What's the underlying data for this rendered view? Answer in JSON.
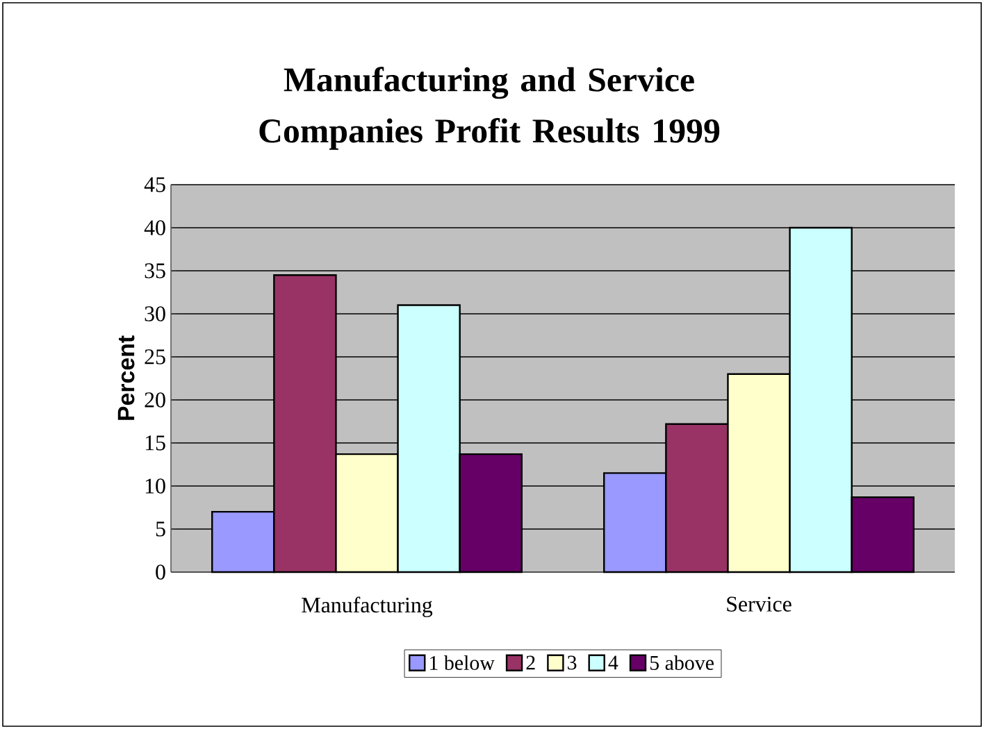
{
  "chart_data": {
    "type": "bar",
    "title": "Manufacturing and Service Companies Profit Results 1999",
    "ylabel": "Percent",
    "categories": [
      "Manufacturing",
      "Service"
    ],
    "series": [
      {
        "name": "1 below",
        "color": "#9999ff",
        "values": [
          7,
          11.5
        ]
      },
      {
        "name": "2",
        "color": "#993366",
        "values": [
          34.5,
          17.2
        ]
      },
      {
        "name": "3",
        "color": "#ffffcc",
        "values": [
          13.7,
          23
        ]
      },
      {
        "name": "4",
        "color": "#ccffff",
        "values": [
          31,
          40
        ]
      },
      {
        "name": "5 above",
        "color": "#660066",
        "values": [
          13.7,
          8.7
        ]
      }
    ],
    "ylim": [
      0,
      45
    ],
    "yticks": [
      0,
      5,
      10,
      15,
      20,
      25,
      30,
      35,
      40,
      45
    ],
    "grid": "y",
    "legend": "bottom"
  }
}
